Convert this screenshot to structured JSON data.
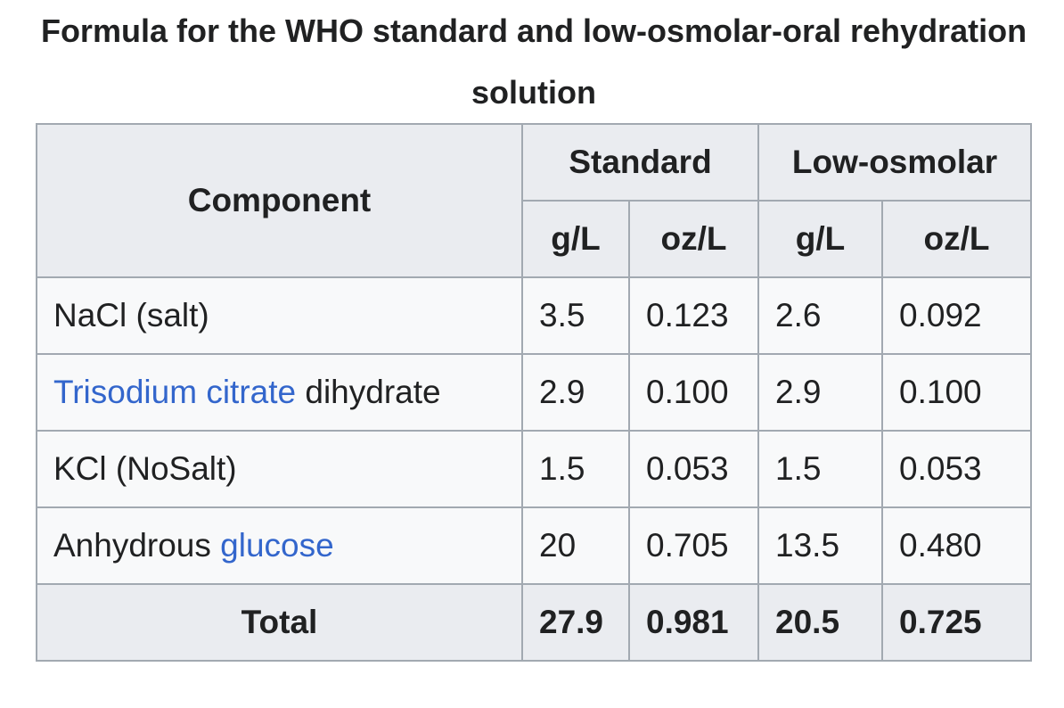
{
  "caption": "Formula for the WHO standard and low-osmolar-oral rehydration solution",
  "header": {
    "component": "Component",
    "groups": [
      "Standard",
      "Low-osmolar"
    ],
    "units": [
      "g/L",
      "oz/L",
      "g/L",
      "oz/L"
    ]
  },
  "rows": [
    {
      "component": [
        {
          "text": "NaCl (salt)",
          "link": false
        }
      ],
      "values": [
        "3.5",
        "0.123",
        "2.6",
        "0.092"
      ]
    },
    {
      "component": [
        {
          "text": "Trisodium citrate",
          "link": true
        },
        {
          "text": "dihydrate",
          "link": false
        }
      ],
      "values": [
        "2.9",
        "0.100",
        "2.9",
        "0.100"
      ]
    },
    {
      "component": [
        {
          "text": "KCl (NoSalt)",
          "link": false
        }
      ],
      "values": [
        "1.5",
        "0.053",
        "1.5",
        "0.053"
      ]
    },
    {
      "component": [
        {
          "text": "Anhydrous",
          "link": false
        },
        {
          "text": "glucose",
          "link": true
        }
      ],
      "values": [
        "20",
        "0.705",
        "13.5",
        "0.480"
      ]
    }
  ],
  "total": {
    "label": "Total",
    "values": [
      "27.9",
      "0.981",
      "20.5",
      "0.725"
    ]
  }
}
